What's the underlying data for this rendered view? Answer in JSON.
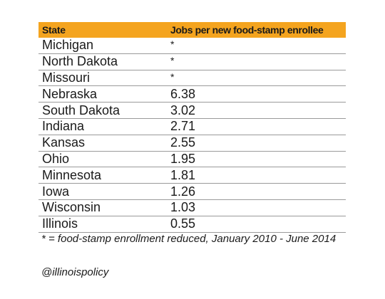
{
  "table": {
    "headers": {
      "state": "State",
      "jobs": "Jobs per new food-stamp enrollee"
    },
    "rows": [
      {
        "state": "Michigan",
        "jobs": "*"
      },
      {
        "state": "North Dakota",
        "jobs": "*"
      },
      {
        "state": "Missouri",
        "jobs": "*"
      },
      {
        "state": "Nebraska",
        "jobs": "6.38"
      },
      {
        "state": "South Dakota",
        "jobs": "3.02"
      },
      {
        "state": "Indiana",
        "jobs": "2.71"
      },
      {
        "state": "Kansas",
        "jobs": "2.55"
      },
      {
        "state": "Ohio",
        "jobs": "1.95"
      },
      {
        "state": "Minnesota",
        "jobs": "1.81"
      },
      {
        "state": "Iowa",
        "jobs": "1.26"
      },
      {
        "state": "Wisconsin",
        "jobs": "1.03"
      },
      {
        "state": "Illinois",
        "jobs": "0.55"
      }
    ],
    "header_color": "#f4a41f"
  },
  "footnote": "* = food-stamp enrollment reduced, January 2010 - June 2014",
  "handle": "@illinoispolicy"
}
